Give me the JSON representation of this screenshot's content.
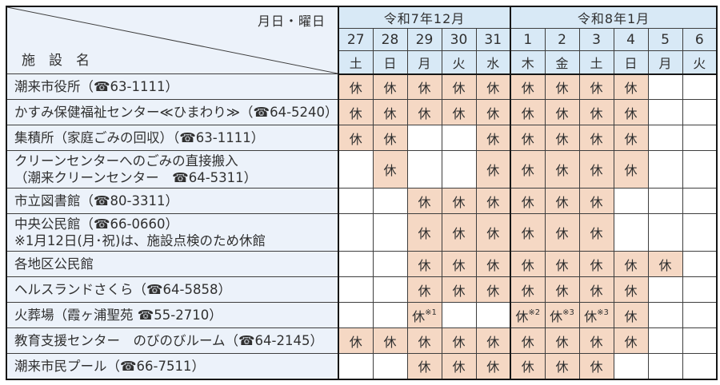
{
  "colors": {
    "header_bg": "#d8e9f6",
    "name_bg": "#ecf2fa",
    "closed_bg": "#f5d8c4",
    "open_bg": "#ffffff",
    "border_thin": "#3e3e3e",
    "border_strong": "#161616",
    "text": "#303030"
  },
  "corner": {
    "top_label": "月日・曜日",
    "bottom_label": "施　設　名"
  },
  "months": [
    {
      "label": "令和7年12月",
      "span": 5
    },
    {
      "label": "令和8年1月",
      "span": 6
    }
  ],
  "days": [
    "27",
    "28",
    "29",
    "30",
    "31",
    "1",
    "2",
    "3",
    "4",
    "5",
    "6"
  ],
  "weekdays": [
    "土",
    "日",
    "月",
    "火",
    "水",
    "木",
    "金",
    "土",
    "日",
    "月",
    "火"
  ],
  "closed_label": "休",
  "rows": [
    {
      "name": "潮来市役所（☎63-1111）",
      "cells": [
        "休",
        "休",
        "休",
        "休",
        "休",
        "休",
        "休",
        "休",
        "休",
        "",
        ""
      ]
    },
    {
      "name": "かすみ保健福祉センター≪ひまわり≫（☎64-5240）",
      "cells": [
        "休",
        "休",
        "休",
        "休",
        "休",
        "休",
        "休",
        "休",
        "休",
        "",
        ""
      ]
    },
    {
      "name": "集積所（家庭ごみの回収）（☎63-1111）",
      "cells": [
        "休",
        "休",
        "",
        "",
        "休",
        "休",
        "休",
        "休",
        "休",
        "",
        ""
      ]
    },
    {
      "name": "クリーンセンターへのごみの直接搬入\n （潮来クリーンセンター　☎64-5311）",
      "cells": [
        "",
        "休",
        "",
        "",
        "休",
        "休",
        "休",
        "休",
        "休",
        "",
        ""
      ]
    },
    {
      "name": "市立図書館（☎80-3311）",
      "cells": [
        "",
        "",
        "休",
        "休",
        "休",
        "休",
        "休",
        "休",
        "",
        "",
        ""
      ]
    },
    {
      "name": "中央公民館（☎66-0660）\n※1月12日(月･祝)は、施設点検のため休館",
      "cells": [
        "",
        "",
        "休",
        "休",
        "休",
        "休",
        "休",
        "休",
        "",
        "",
        ""
      ]
    },
    {
      "name": "各地区公民館",
      "cells": [
        "",
        "",
        "休",
        "休",
        "休",
        "休",
        "休",
        "休",
        "休",
        "休",
        ""
      ]
    },
    {
      "name": "ヘルスランドさくら（☎64-5858）",
      "cells": [
        "",
        "",
        "休",
        "休",
        "休",
        "休",
        "休",
        "休",
        "休",
        "",
        ""
      ]
    },
    {
      "name": "火葬場（霞ヶ浦聖苑 ☎55-2710）",
      "cells": [
        "",
        "",
        "休※1",
        "",
        "",
        "休※2",
        "休※3",
        "休※3",
        "休",
        "",
        ""
      ]
    },
    {
      "name": "教育支援センター　のびのびルーム（☎64-2145）",
      "cells": [
        "休",
        "休",
        "休",
        "休",
        "休",
        "休",
        "休",
        "休",
        "休",
        "",
        ""
      ]
    },
    {
      "name": "潮来市民プール（☎66-7511）",
      "cells": [
        "",
        "",
        "休",
        "休",
        "休",
        "休",
        "休",
        "休",
        "",
        "",
        ""
      ]
    }
  ]
}
